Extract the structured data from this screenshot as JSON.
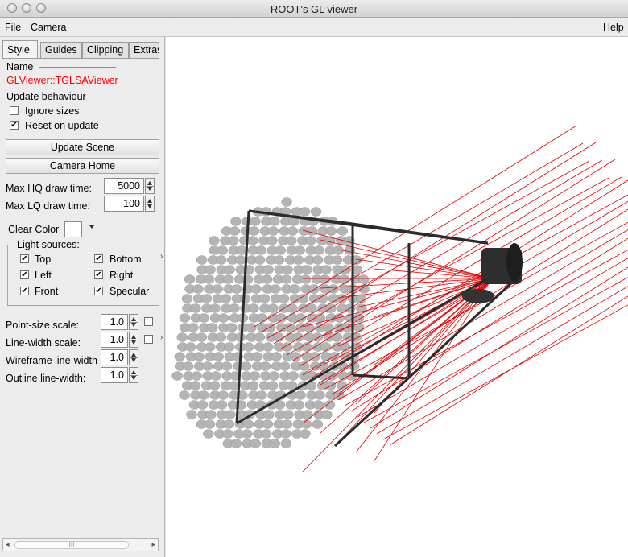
{
  "window": {
    "title": "ROOT's GL viewer"
  },
  "menubar": {
    "file": "File",
    "camera": "Camera",
    "help": "Help"
  },
  "tabs": [
    "Style",
    "Guides",
    "Clipping",
    "Extras"
  ],
  "panel": {
    "name_label": "Name",
    "name_value": "GLViewer::TGLSAViewer",
    "name_color": "#ff0000",
    "update_label": "Update behaviour",
    "ignore_sizes": {
      "label": "Ignore sizes",
      "checked": false
    },
    "reset_on_update": {
      "label": "Reset on update",
      "checked": true
    },
    "update_scene": "Update Scene",
    "camera_home": "Camera Home",
    "max_hq": {
      "label": "Max HQ draw time:",
      "value": "5000"
    },
    "max_lq": {
      "label": "Max LQ draw time:",
      "value": "100"
    },
    "clear_color": {
      "label": "Clear Color",
      "value": "#ffffff"
    },
    "light_sources": {
      "label": "Light sources:",
      "items": [
        {
          "label": "Top",
          "checked": true
        },
        {
          "label": "Bottom",
          "checked": true
        },
        {
          "label": "Left",
          "checked": true
        },
        {
          "label": "Right",
          "checked": true
        },
        {
          "label": "Front",
          "checked": true
        },
        {
          "label": "Specular",
          "checked": true
        }
      ]
    },
    "point_size_scale": {
      "label": "Point-size scale:",
      "value": "1.0"
    },
    "line_width_scale": {
      "label": "Line-width scale:",
      "value": "1.0"
    },
    "wireframe_line_width": {
      "label": "Wireframe line-width",
      "value": "1.0"
    },
    "outline_line_width": {
      "label": "Outline line-width:",
      "value": "1.0"
    },
    "scrollbar_grip": "III"
  },
  "scene": {
    "ray_color": "#e00000",
    "mirror_color": "#b4b4b4",
    "frame_color": "#2b2b2b"
  }
}
